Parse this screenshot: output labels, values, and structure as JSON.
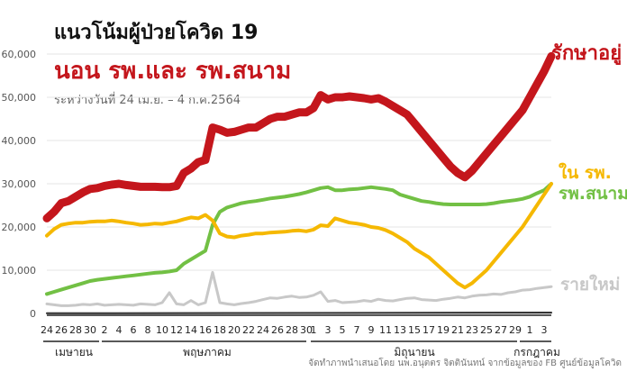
{
  "header": {
    "title": "แนวโน้มผู้ป่วยโควิด 19",
    "subtitle": "นอน รพ.และ รพ.สนาม",
    "date_range": "ระหว่างวันที่ 24 เม.ย. – 4 ก.ค.2564"
  },
  "footer": {
    "source": "จัดทำภาพนำเสนอโดย นพ.อนุตตร จิตตินันทน์ จากข้อมูลของ FB ศูนย์ข้อมูลโควิด"
  },
  "colors": {
    "treating": "#c4161c",
    "field": "#f5b800",
    "hospital": "#72c044",
    "new": "#c8c8c8",
    "axis": "#222222",
    "grid": "#e6e6e6"
  },
  "chart_data": {
    "type": "line",
    "y_ticks": [
      "0",
      "10,000",
      "20,000",
      "30,000",
      "40,000",
      "50,000",
      "60,000"
    ],
    "ylim": [
      0,
      60000
    ],
    "x_tick_labels": [
      "24",
      "26",
      "28",
      "30",
      "2",
      "4",
      "6",
      "8",
      "10",
      "12",
      "14",
      "16",
      "18",
      "20",
      "22",
      "24",
      "26",
      "28",
      "30",
      "1",
      "3",
      "5",
      "7",
      "9",
      "11",
      "13",
      "15",
      "17",
      "19",
      "21",
      "23",
      "25",
      "27",
      "29",
      "1",
      "3"
    ],
    "month_labels": [
      "เมษายน",
      "พฤษภาคม",
      "มิถุนายน",
      "กรกฎาคม"
    ],
    "series": [
      {
        "name": "รักษาอยู่",
        "color": "#c4161c",
        "points": [
          [
            0,
            22000
          ],
          [
            1,
            23500
          ],
          [
            2,
            25500
          ],
          [
            3,
            26000
          ],
          [
            4,
            27000
          ],
          [
            5,
            28000
          ],
          [
            6,
            28800
          ],
          [
            7,
            29000
          ],
          [
            8,
            29500
          ],
          [
            9,
            29800
          ],
          [
            10,
            30000
          ],
          [
            11,
            29700
          ],
          [
            12,
            29500
          ],
          [
            13,
            29300
          ],
          [
            14,
            29300
          ],
          [
            15,
            29300
          ],
          [
            16,
            29200
          ],
          [
            17,
            29200
          ],
          [
            18,
            29500
          ],
          [
            19,
            32500
          ],
          [
            20,
            33500
          ],
          [
            21,
            35000
          ],
          [
            22,
            35500
          ],
          [
            23,
            43000
          ],
          [
            24,
            42500
          ],
          [
            25,
            41800
          ],
          [
            26,
            42000
          ],
          [
            27,
            42500
          ],
          [
            28,
            43000
          ],
          [
            29,
            43000
          ],
          [
            30,
            44000
          ],
          [
            31,
            45000
          ],
          [
            32,
            45500
          ],
          [
            33,
            45500
          ],
          [
            34,
            46000
          ],
          [
            35,
            46500
          ],
          [
            36,
            46500
          ],
          [
            37,
            47500
          ],
          [
            38,
            50500
          ],
          [
            39,
            49500
          ],
          [
            40,
            50000
          ],
          [
            41,
            50000
          ],
          [
            42,
            50200
          ],
          [
            43,
            50000
          ],
          [
            44,
            49800
          ],
          [
            45,
            49500
          ],
          [
            46,
            49800
          ],
          [
            47,
            49000
          ],
          [
            48,
            48000
          ],
          [
            49,
            47000
          ],
          [
            50,
            46000
          ],
          [
            51,
            44000
          ],
          [
            52,
            42000
          ],
          [
            53,
            40000
          ],
          [
            54,
            38000
          ],
          [
            55,
            36000
          ],
          [
            56,
            34000
          ],
          [
            57,
            32500
          ],
          [
            58,
            31500
          ],
          [
            59,
            33000
          ],
          [
            60,
            35000
          ],
          [
            61,
            37000
          ],
          [
            62,
            39000
          ],
          [
            63,
            41000
          ],
          [
            64,
            43000
          ],
          [
            65,
            45000
          ],
          [
            66,
            47000
          ],
          [
            67,
            50000
          ],
          [
            68,
            53000
          ],
          [
            69,
            56000
          ],
          [
            70,
            59500
          ]
        ]
      },
      {
        "name": "ใน รพ.",
        "color": "#f5b800",
        "points": [
          [
            0,
            18000
          ],
          [
            1,
            19500
          ],
          [
            2,
            20500
          ],
          [
            3,
            20800
          ],
          [
            4,
            21000
          ],
          [
            5,
            21000
          ],
          [
            6,
            21200
          ],
          [
            7,
            21300
          ],
          [
            8,
            21300
          ],
          [
            9,
            21500
          ],
          [
            10,
            21300
          ],
          [
            11,
            21000
          ],
          [
            12,
            20800
          ],
          [
            13,
            20500
          ],
          [
            14,
            20600
          ],
          [
            15,
            20800
          ],
          [
            16,
            20700
          ],
          [
            17,
            21000
          ],
          [
            18,
            21300
          ],
          [
            19,
            21800
          ],
          [
            20,
            22200
          ],
          [
            21,
            22000
          ],
          [
            22,
            22800
          ],
          [
            23,
            21500
          ],
          [
            24,
            18500
          ],
          [
            25,
            17800
          ],
          [
            26,
            17600
          ],
          [
            27,
            18000
          ],
          [
            28,
            18200
          ],
          [
            29,
            18500
          ],
          [
            30,
            18500
          ],
          [
            31,
            18700
          ],
          [
            32,
            18800
          ],
          [
            33,
            18900
          ],
          [
            34,
            19100
          ],
          [
            35,
            19200
          ],
          [
            36,
            19000
          ],
          [
            37,
            19400
          ],
          [
            38,
            20400
          ],
          [
            39,
            20200
          ],
          [
            40,
            22000
          ],
          [
            41,
            21500
          ],
          [
            42,
            21000
          ],
          [
            43,
            20800
          ],
          [
            44,
            20500
          ],
          [
            45,
            20000
          ],
          [
            46,
            19800
          ],
          [
            47,
            19300
          ],
          [
            48,
            18500
          ],
          [
            49,
            17500
          ],
          [
            50,
            16500
          ],
          [
            51,
            15000
          ],
          [
            52,
            14000
          ],
          [
            53,
            13000
          ],
          [
            54,
            11500
          ],
          [
            55,
            10000
          ],
          [
            56,
            8500
          ],
          [
            57,
            7000
          ],
          [
            58,
            6000
          ],
          [
            59,
            7000
          ],
          [
            60,
            8500
          ],
          [
            61,
            10000
          ],
          [
            62,
            12000
          ],
          [
            63,
            14000
          ],
          [
            64,
            16000
          ],
          [
            65,
            18000
          ],
          [
            66,
            20000
          ],
          [
            67,
            22500
          ],
          [
            68,
            25000
          ],
          [
            69,
            27500
          ],
          [
            70,
            30000
          ]
        ]
      },
      {
        "name": "รพ.สนาม",
        "color": "#72c044",
        "points": [
          [
            0,
            4500
          ],
          [
            1,
            5000
          ],
          [
            2,
            5500
          ],
          [
            3,
            6000
          ],
          [
            4,
            6500
          ],
          [
            5,
            7000
          ],
          [
            6,
            7500
          ],
          [
            7,
            7800
          ],
          [
            8,
            8000
          ],
          [
            9,
            8200
          ],
          [
            10,
            8400
          ],
          [
            11,
            8600
          ],
          [
            12,
            8800
          ],
          [
            13,
            9000
          ],
          [
            14,
            9200
          ],
          [
            15,
            9400
          ],
          [
            16,
            9500
          ],
          [
            17,
            9700
          ],
          [
            18,
            10000
          ],
          [
            19,
            11500
          ],
          [
            20,
            12500
          ],
          [
            21,
            13500
          ],
          [
            22,
            14500
          ],
          [
            23,
            20500
          ],
          [
            24,
            23500
          ],
          [
            25,
            24500
          ],
          [
            26,
            25000
          ],
          [
            27,
            25500
          ],
          [
            28,
            25800
          ],
          [
            29,
            26000
          ],
          [
            30,
            26300
          ],
          [
            31,
            26600
          ],
          [
            32,
            26800
          ],
          [
            33,
            27000
          ],
          [
            34,
            27300
          ],
          [
            35,
            27600
          ],
          [
            36,
            28000
          ],
          [
            37,
            28500
          ],
          [
            38,
            29000
          ],
          [
            39,
            29200
          ],
          [
            40,
            28500
          ],
          [
            41,
            28500
          ],
          [
            42,
            28700
          ],
          [
            43,
            28800
          ],
          [
            44,
            29000
          ],
          [
            45,
            29200
          ],
          [
            46,
            29000
          ],
          [
            47,
            28800
          ],
          [
            48,
            28500
          ],
          [
            49,
            27500
          ],
          [
            50,
            27000
          ],
          [
            51,
            26500
          ],
          [
            52,
            26000
          ],
          [
            53,
            25800
          ],
          [
            54,
            25500
          ],
          [
            55,
            25300
          ],
          [
            56,
            25200
          ],
          [
            57,
            25200
          ],
          [
            58,
            25200
          ],
          [
            59,
            25200
          ],
          [
            60,
            25200
          ],
          [
            61,
            25300
          ],
          [
            62,
            25500
          ],
          [
            63,
            25800
          ],
          [
            64,
            26000
          ],
          [
            65,
            26200
          ],
          [
            66,
            26500
          ],
          [
            67,
            27000
          ],
          [
            68,
            27800
          ],
          [
            69,
            28500
          ],
          [
            70,
            30000
          ]
        ]
      },
      {
        "name": "รายใหม่",
        "color": "#c8c8c8",
        "points": [
          [
            0,
            2200
          ],
          [
            1,
            2000
          ],
          [
            2,
            1800
          ],
          [
            3,
            1800
          ],
          [
            4,
            1900
          ],
          [
            5,
            2100
          ],
          [
            6,
            2000
          ],
          [
            7,
            2200
          ],
          [
            8,
            1900
          ],
          [
            9,
            2000
          ],
          [
            10,
            2100
          ],
          [
            11,
            2000
          ],
          [
            12,
            1900
          ],
          [
            13,
            2200
          ],
          [
            14,
            2100
          ],
          [
            15,
            2000
          ],
          [
            16,
            2500
          ],
          [
            17,
            4800
          ],
          [
            18,
            2200
          ],
          [
            19,
            2000
          ],
          [
            20,
            3000
          ],
          [
            21,
            2000
          ],
          [
            22,
            2500
          ],
          [
            23,
            9500
          ],
          [
            24,
            2500
          ],
          [
            25,
            2200
          ],
          [
            26,
            2000
          ],
          [
            27,
            2300
          ],
          [
            28,
            2500
          ],
          [
            29,
            2800
          ],
          [
            30,
            3200
          ],
          [
            31,
            3600
          ],
          [
            32,
            3500
          ],
          [
            33,
            3800
          ],
          [
            34,
            4000
          ],
          [
            35,
            3700
          ],
          [
            36,
            3800
          ],
          [
            37,
            4200
          ],
          [
            38,
            5000
          ],
          [
            39,
            2800
          ],
          [
            40,
            3000
          ],
          [
            41,
            2500
          ],
          [
            42,
            2600
          ],
          [
            43,
            2700
          ],
          [
            44,
            3000
          ],
          [
            45,
            2800
          ],
          [
            46,
            3300
          ],
          [
            47,
            3000
          ],
          [
            48,
            2900
          ],
          [
            49,
            3200
          ],
          [
            50,
            3500
          ],
          [
            51,
            3600
          ],
          [
            52,
            3200
          ],
          [
            53,
            3100
          ],
          [
            54,
            3000
          ],
          [
            55,
            3300
          ],
          [
            56,
            3500
          ],
          [
            57,
            3800
          ],
          [
            58,
            3600
          ],
          [
            59,
            4000
          ],
          [
            60,
            4200
          ],
          [
            61,
            4300
          ],
          [
            62,
            4500
          ],
          [
            63,
            4400
          ],
          [
            64,
            4800
          ],
          [
            65,
            5000
          ],
          [
            66,
            5400
          ],
          [
            67,
            5500
          ],
          [
            68,
            5800
          ],
          [
            69,
            6000
          ],
          [
            70,
            6200
          ]
        ]
      },
      {
        "color": "#333333",
        "points": [
          [
            0,
            50
          ],
          [
            70,
            200
          ]
        ]
      },
      {
        "color": "#999999",
        "points": [
          [
            0,
            20
          ],
          [
            70,
            120
          ]
        ]
      }
    ]
  }
}
